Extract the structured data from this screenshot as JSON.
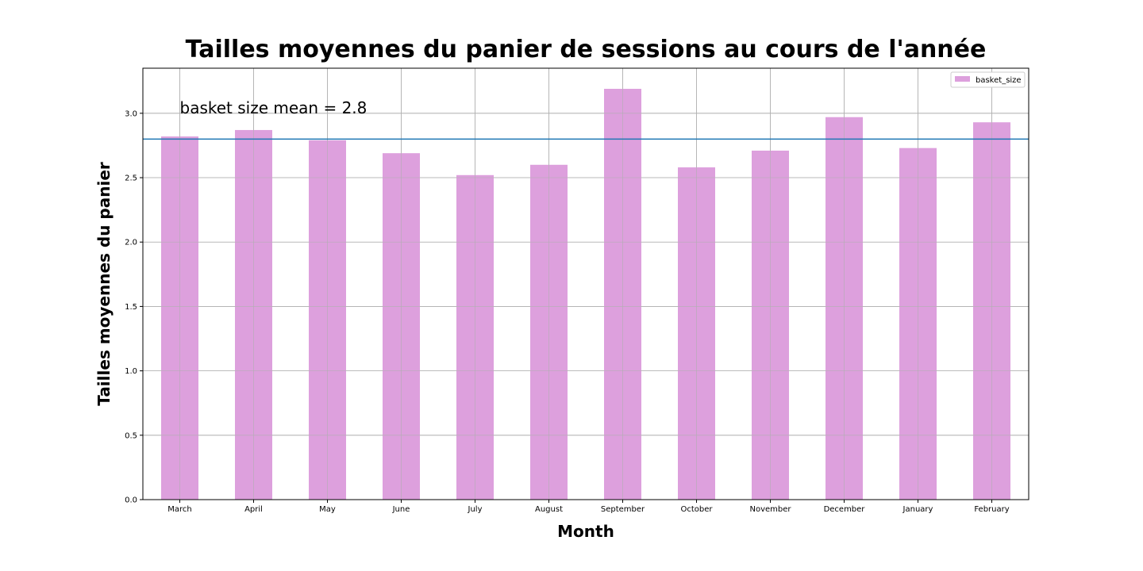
{
  "chart_data": {
    "type": "bar",
    "title": "Tailles moyennes du panier de sessions au cours de l'année",
    "xlabel": "Month",
    "ylabel": "Tailles moyennes du panier",
    "categories": [
      "March",
      "April",
      "May",
      "June",
      "July",
      "August",
      "September",
      "October",
      "November",
      "December",
      "January",
      "February"
    ],
    "series": [
      {
        "name": "basket_size",
        "color": "#dda0dd",
        "values": [
          2.82,
          2.87,
          2.79,
          2.69,
          2.52,
          2.6,
          3.19,
          2.58,
          2.71,
          2.97,
          2.73,
          2.93
        ]
      }
    ],
    "yticks": [
      "0.0",
      "0.5",
      "1.0",
      "1.5",
      "2.0",
      "2.5",
      "3.0"
    ],
    "ylim": [
      0,
      3.35
    ],
    "grid": true,
    "legend_position": "top-right",
    "mean_line": {
      "value": 2.8,
      "color": "#1f77b4"
    },
    "annotation": {
      "text": "basket size mean = 2.8",
      "x_category": "March",
      "y": 3.0
    }
  }
}
